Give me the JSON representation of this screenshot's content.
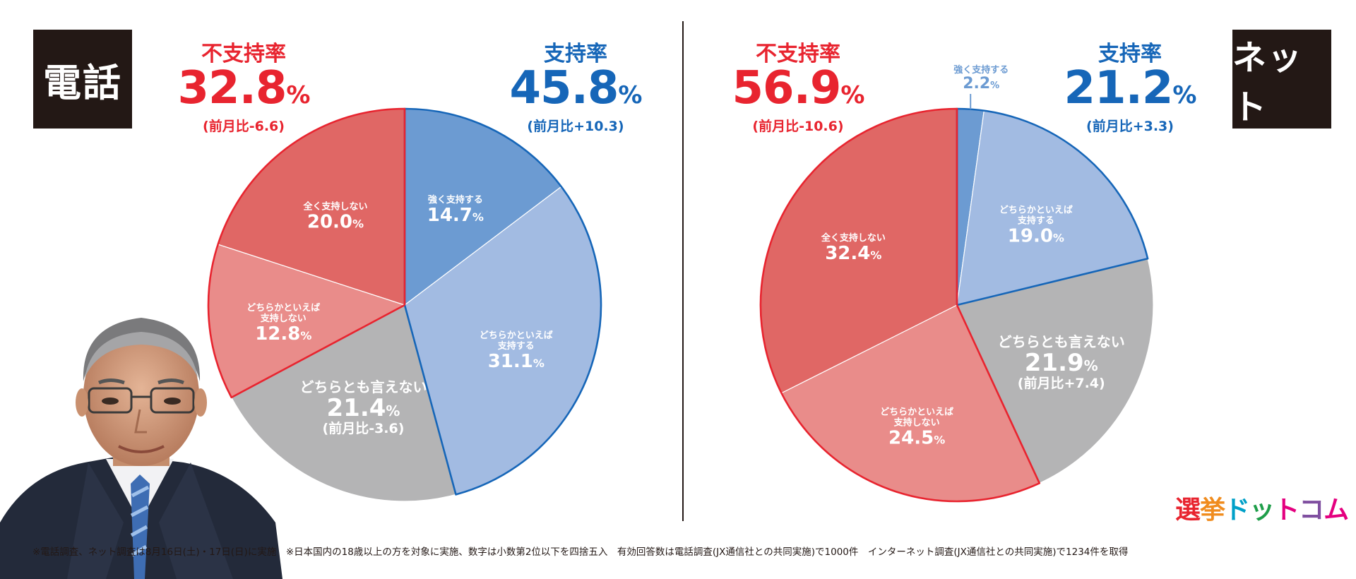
{
  "colors": {
    "strong_support": "#6c9bd2",
    "somewhat_support": "#a2bbe2",
    "neutral": "#b4b4b5",
    "somewhat_not": "#e98c8a",
    "not_at_all": "#e06765",
    "outline_support": "#1666b8",
    "outline_not": "#e8242f",
    "dark": "#231815"
  },
  "chart_data": [
    {
      "type": "pie",
      "method_label": "電話",
      "headline_not": {
        "label": "不支持率",
        "value": "32.8",
        "unit": "%",
        "delta": "(前月比-6.6)"
      },
      "headline_support": {
        "label": "支持率",
        "value": "45.8",
        "unit": "%",
        "delta": "(前月比+10.3)"
      },
      "slices": [
        {
          "label_lines": [
            "強く支持する"
          ],
          "value": 14.7,
          "value_text": "14.7",
          "unit": "%",
          "delta": ""
        },
        {
          "label_lines": [
            "どちらかといえば",
            "支持する"
          ],
          "value": 31.1,
          "value_text": "31.1",
          "unit": "%",
          "delta": ""
        },
        {
          "label_lines": [
            "どちらとも言えない"
          ],
          "value": 21.4,
          "value_text": "21.4",
          "unit": "%",
          "delta": "(前月比-3.6)"
        },
        {
          "label_lines": [
            "どちらかといえば",
            "支持しない"
          ],
          "value": 12.8,
          "value_text": "12.8",
          "unit": "%",
          "delta": ""
        },
        {
          "label_lines": [
            "全く支持しない"
          ],
          "value": 20.0,
          "value_text": "20.0",
          "unit": "%",
          "delta": ""
        }
      ]
    },
    {
      "type": "pie",
      "method_label": "ネット",
      "headline_not": {
        "label": "不支持率",
        "value": "56.9",
        "unit": "%",
        "delta": "(前月比-10.6)"
      },
      "headline_support": {
        "label": "支持率",
        "value": "21.2",
        "unit": "%",
        "delta": "(前月比+3.3)"
      },
      "slices": [
        {
          "label_lines": [
            "強く支持する"
          ],
          "value": 2.2,
          "value_text": "2.2",
          "unit": "%",
          "delta": ""
        },
        {
          "label_lines": [
            "どちらかといえば",
            "支持する"
          ],
          "value": 19.0,
          "value_text": "19.0",
          "unit": "%",
          "delta": ""
        },
        {
          "label_lines": [
            "どちらとも言えない"
          ],
          "value": 21.9,
          "value_text": "21.9",
          "unit": "%",
          "delta": "(前月比+7.4)"
        },
        {
          "label_lines": [
            "どちらかといえば",
            "支持しない"
          ],
          "value": 24.5,
          "value_text": "24.5",
          "unit": "%",
          "delta": ""
        },
        {
          "label_lines": [
            "全く支持しない"
          ],
          "value": 32.4,
          "value_text": "32.4",
          "unit": "%",
          "delta": ""
        }
      ]
    }
  ],
  "footnote": "※電話調査、ネット調査は8月16日(土)・17日(日)に実施　※日本国内の18歳以上の方を対象に実施、数字は小数第2位以下を四捨五入　有効回答数は電話調査(JX通信社との共同実施)で1000件　インターネット調査(JX通信社との共同実施)で1234件を取得",
  "logo": {
    "text": "選挙ドットコム",
    "colors": [
      "#e8242f",
      "#f08c1e",
      "#00a0c8",
      "#1f9e4a",
      "#e4007f",
      "#7f4fa0",
      "#e4007f"
    ]
  }
}
